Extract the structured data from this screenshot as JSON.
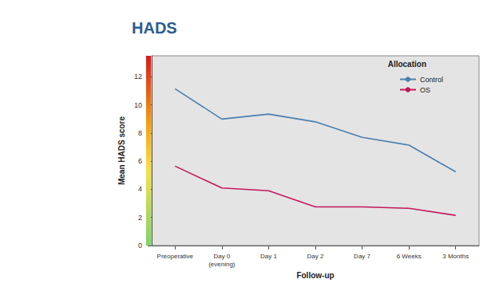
{
  "chart_data": {
    "type": "line",
    "title": "HADS",
    "x_label": "Follow-up",
    "y_label": "Mean HADS score",
    "legend_title": "Allocation",
    "categories": [
      "Preoperative",
      "Day 0 (evening)",
      "Day 1",
      "Day 2",
      "Day 7",
      "6 Weeks",
      "3 Months"
    ],
    "series": [
      {
        "name": "Control",
        "color": "#4a7fb0",
        "values": [
          11.15,
          9.0,
          9.35,
          8.8,
          7.7,
          7.15,
          5.25
        ]
      },
      {
        "name": "OS",
        "color": "#c2185b",
        "values": [
          5.65,
          4.1,
          3.9,
          2.75,
          2.75,
          2.65,
          2.15
        ]
      }
    ],
    "ylim": [
      0,
      13.5
    ],
    "yticks": [
      0,
      2,
      4,
      6,
      8,
      10,
      12
    ],
    "grid": false,
    "legend": "top-right"
  }
}
